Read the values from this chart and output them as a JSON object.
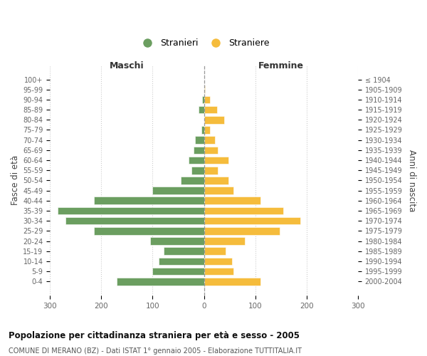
{
  "age_groups": [
    "100+",
    "95-99",
    "90-94",
    "85-89",
    "80-84",
    "75-79",
    "70-74",
    "65-69",
    "60-64",
    "55-59",
    "50-54",
    "45-49",
    "40-44",
    "35-39",
    "30-34",
    "25-29",
    "20-24",
    "15-19",
    "10-14",
    "5-9",
    "0-4"
  ],
  "birth_years": [
    "≤ 1904",
    "1905-1909",
    "1910-1914",
    "1915-1919",
    "1920-1924",
    "1925-1929",
    "1930-1934",
    "1935-1939",
    "1940-1944",
    "1945-1949",
    "1950-1954",
    "1955-1959",
    "1960-1964",
    "1965-1969",
    "1970-1974",
    "1975-1979",
    "1980-1984",
    "1985-1989",
    "1990-1994",
    "1995-1999",
    "2000-2004"
  ],
  "maschi": [
    0,
    0,
    3,
    10,
    0,
    5,
    18,
    20,
    30,
    25,
    45,
    100,
    215,
    285,
    270,
    215,
    105,
    78,
    88,
    100,
    170
  ],
  "femmine": [
    0,
    2,
    12,
    25,
    40,
    12,
    22,
    27,
    47,
    27,
    47,
    58,
    110,
    155,
    188,
    148,
    80,
    42,
    55,
    58,
    110
  ],
  "male_color": "#6b9e60",
  "female_color": "#f5bc3c",
  "xlim": 300,
  "title": "Popolazione per cittadinanza straniera per età e sesso - 2005",
  "subtitle": "COMUNE DI MERANO (BZ) - Dati ISTAT 1° gennaio 2005 - Elaborazione TUTTITALIA.IT",
  "ylabel_left": "Fasce di età",
  "ylabel_right": "Anni di nascita",
  "legend_male": "Stranieri",
  "legend_female": "Straniere",
  "header_left": "Maschi",
  "header_right": "Femmine",
  "bg_color": "#ffffff",
  "grid_color": "#cccccc"
}
